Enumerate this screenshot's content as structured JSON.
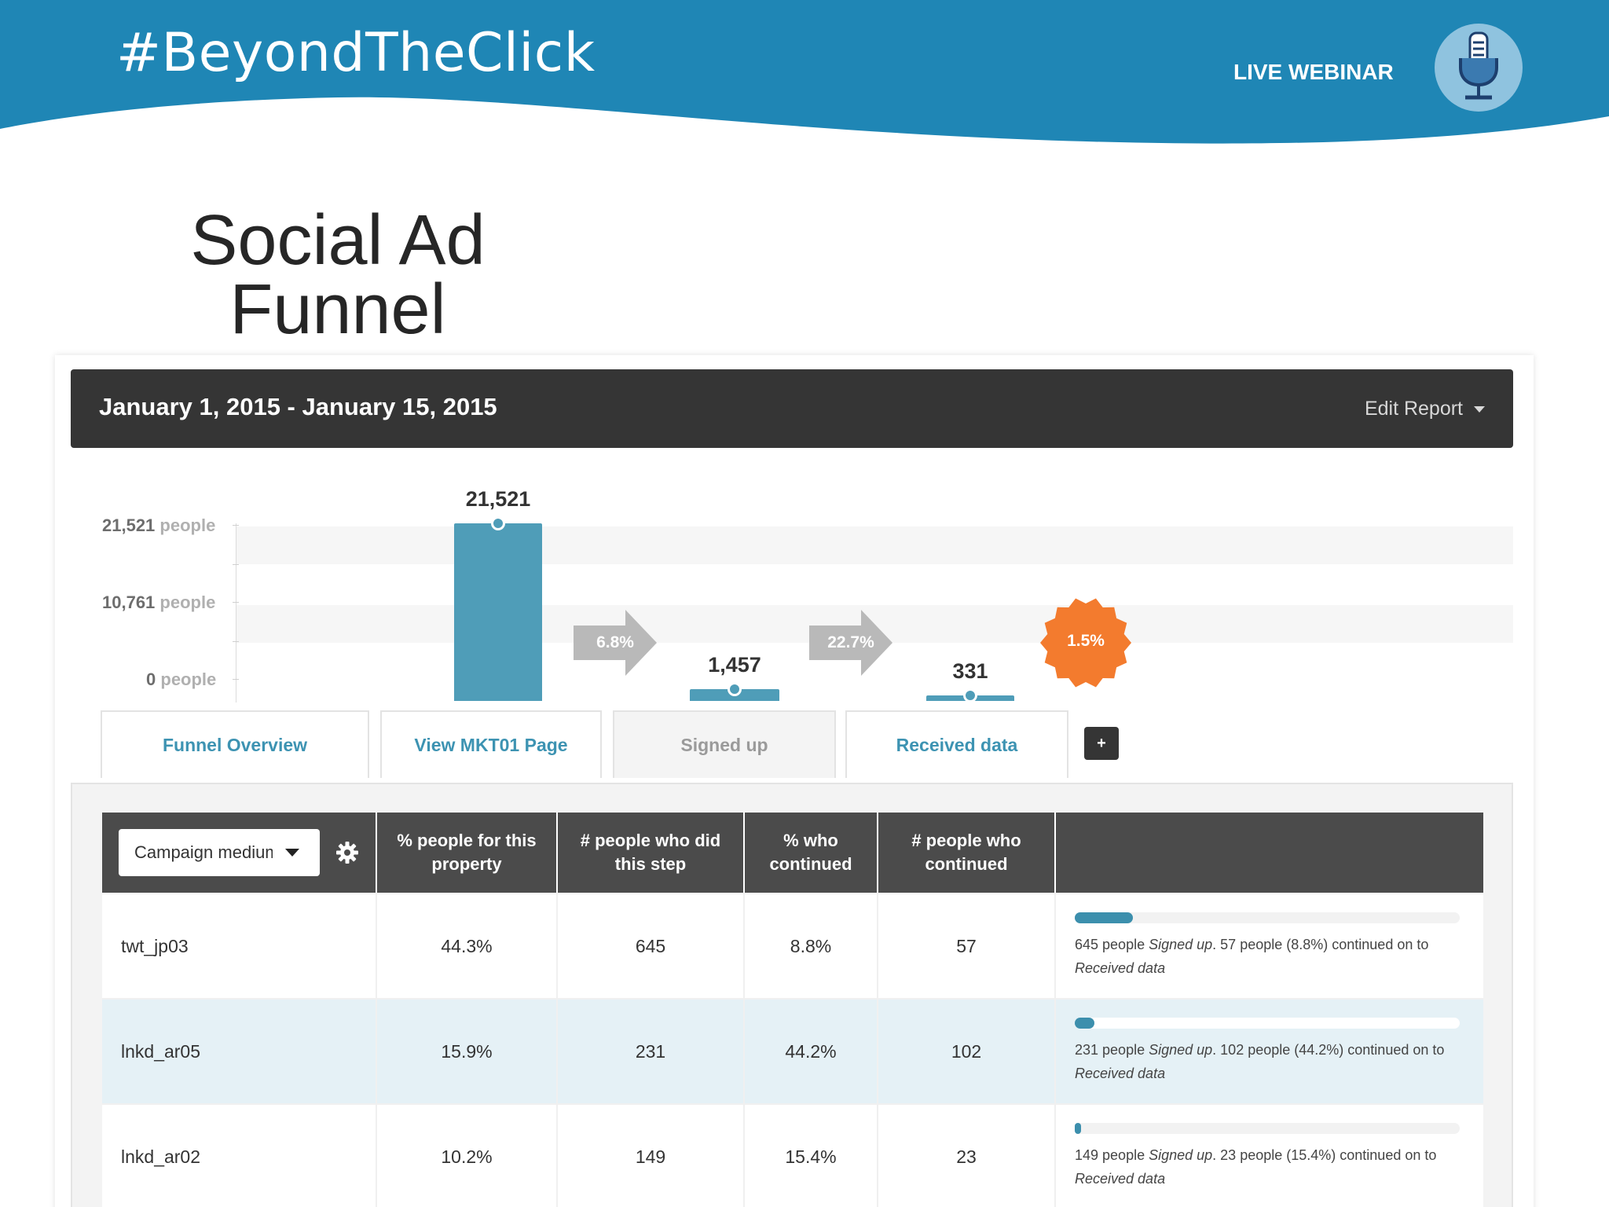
{
  "header": {
    "hashtag": "#BeyondTheClick",
    "live_label": "LIVE WEBINAR",
    "badge_icon": "microphone-icon",
    "brand_color": "#1f86b5"
  },
  "slide": {
    "title_line1": "Social Ad",
    "title_line2": "Funnel"
  },
  "report": {
    "date_range": "January 1, 2015 - January 15, 2015",
    "edit_label": "Edit Report"
  },
  "chart_data": {
    "type": "bar",
    "categories": [
      "View MKT01 Page",
      "Signed up",
      "Received data"
    ],
    "values": [
      21521,
      1457,
      331
    ],
    "value_labels": [
      "21,521",
      "1,457",
      "331"
    ],
    "ylim": [
      0,
      21521
    ],
    "y_ticks": [
      {
        "value": 21521,
        "label": "21,521",
        "unit": "people"
      },
      {
        "value": 10761,
        "label": "10,761",
        "unit": "people"
      },
      {
        "value": 0,
        "label": "0",
        "unit": "people"
      }
    ],
    "step_conversions": [
      "6.8%",
      "22.7%"
    ],
    "overall_conversion": "1.5%",
    "bar_color": "#4f9db8",
    "arrow_color": "#b9b9b9",
    "overall_badge_color": "#f37b2e"
  },
  "tabs": {
    "overview": "Funnel Overview",
    "step1": "View MKT01 Page",
    "step2": "Signed up",
    "step3": "Received data",
    "add_label": "+"
  },
  "table": {
    "property_select": "Campaign medium",
    "headers": [
      "% people for this property",
      "# people who did this step",
      "% who continued",
      "# people who continued"
    ],
    "rows": [
      {
        "name": "twt_jp03",
        "pct_property": "44.3%",
        "did_step": "645",
        "pct_continued": "8.8%",
        "continued": "57",
        "bar_fraction": 0.15,
        "summary_a": "645 people ",
        "summary_step": "Signed up",
        "summary_b": ". 57 people (8.8%) continued on to ",
        "summary_target": "Received data"
      },
      {
        "name": "lnkd_ar05",
        "pct_property": "15.9%",
        "did_step": "231",
        "pct_continued": "44.2%",
        "continued": "102",
        "bar_fraction": 0.05,
        "summary_a": "231 people ",
        "summary_step": "Signed up",
        "summary_b": ". 102 people (44.2%) continued on to ",
        "summary_target": "Received data"
      },
      {
        "name": "lnkd_ar02",
        "pct_property": "10.2%",
        "did_step": "149",
        "pct_continued": "15.4%",
        "continued": "23",
        "bar_fraction": 0.012,
        "summary_a": "149 people ",
        "summary_step": "Signed up",
        "summary_b": ". 23 people (15.4%) continued on to ",
        "summary_target": "Received data"
      }
    ]
  }
}
